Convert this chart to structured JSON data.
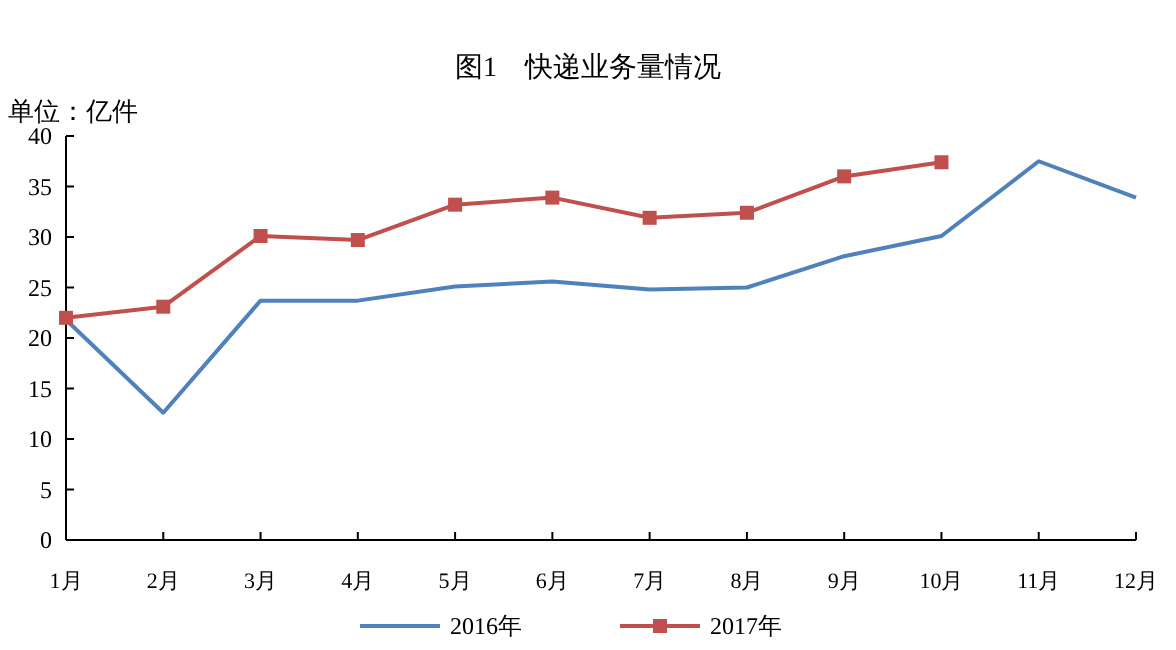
{
  "chart_data": {
    "type": "line",
    "title": "图1　快递业务量情况",
    "ylabel": "单位：亿件",
    "categories": [
      "1月",
      "2月",
      "3月",
      "4月",
      "5月",
      "6月",
      "7月",
      "8月",
      "9月",
      "10月",
      "11月",
      "12月"
    ],
    "series": [
      {
        "name": "2016年",
        "color": "#4f81bd",
        "marker": "none",
        "values": [
          21.8,
          12.6,
          23.7,
          23.7,
          25.1,
          25.6,
          24.8,
          25.0,
          28.1,
          30.1,
          37.5,
          33.9
        ]
      },
      {
        "name": "2017年",
        "color": "#c0504d",
        "marker": "square",
        "values": [
          22.0,
          23.1,
          30.1,
          29.7,
          33.2,
          33.9,
          31.9,
          32.4,
          36.0,
          37.4,
          null,
          null
        ]
      }
    ],
    "ylim": [
      0,
      40
    ],
    "yticks": [
      0,
      5,
      10,
      15,
      20,
      25,
      30,
      35,
      40
    ],
    "grid": false,
    "legend": "bottom",
    "line_style": "solid"
  }
}
